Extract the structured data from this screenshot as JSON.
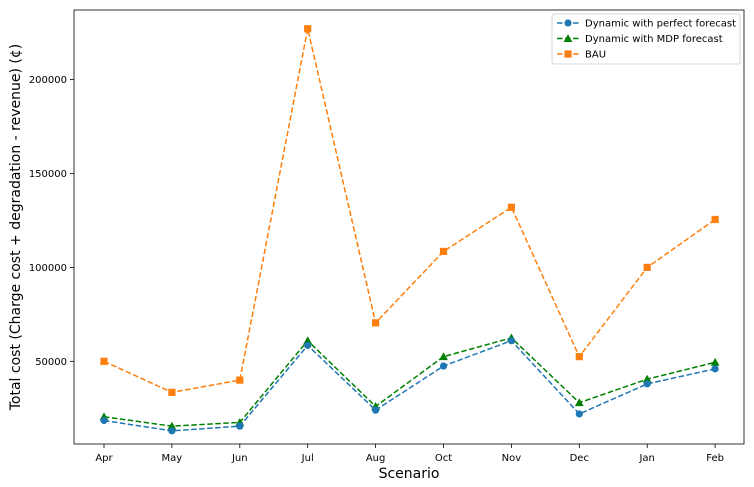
{
  "chart_data": {
    "type": "line",
    "xlabel": "Scenario",
    "ylabel": "Total cost (Charge cost + degradation - revenue) (¢)",
    "categories": [
      "Apr",
      "May",
      "Jun",
      "Jul",
      "Aug",
      "Oct",
      "Nov",
      "Dec",
      "Jan",
      "Feb"
    ],
    "ylim": [
      6000,
      237000
    ],
    "yticks": [
      50000,
      100000,
      150000,
      200000
    ],
    "ytick_labels": [
      "50000",
      "100000",
      "150000",
      "200000"
    ],
    "grid": false,
    "legend_position": "top-right",
    "series": [
      {
        "name": "Dynamic with perfect forecast",
        "color": "#1f77b4",
        "marker": "circle",
        "linestyle": "dashed",
        "values": [
          18500,
          13000,
          15500,
          58500,
          24000,
          47500,
          61000,
          22000,
          38000,
          46000
        ]
      },
      {
        "name": "Dynamic with MDP forecast",
        "color": "#008000",
        "marker": "triangle",
        "linestyle": "dashed",
        "values": [
          20500,
          15500,
          17500,
          61000,
          26000,
          52500,
          62500,
          28000,
          40500,
          49500
        ]
      },
      {
        "name": "BAU",
        "color": "#ff7f0e",
        "marker": "square",
        "linestyle": "dashed",
        "values": [
          50000,
          33500,
          40000,
          227000,
          70500,
          108500,
          132000,
          52500,
          100000,
          125500
        ]
      }
    ]
  }
}
